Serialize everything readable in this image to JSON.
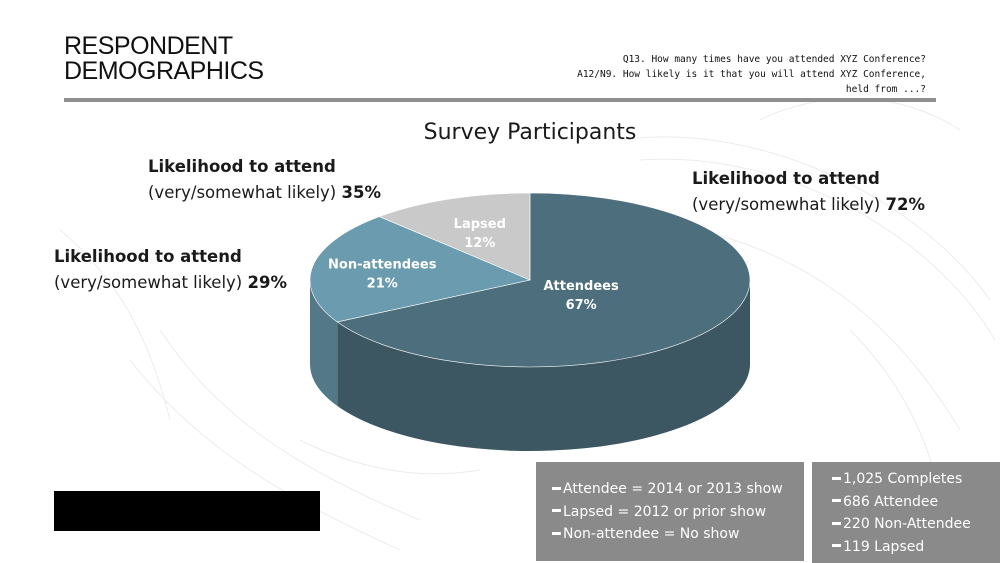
{
  "header": {
    "title_line1": "RESPONDENT",
    "title_line2": "DEMOGRAPHICS",
    "question_line1": "Q13. How many times have you attended XYZ Conference?",
    "question_line2": "A12/N9. How likely is it that you will attend XYZ Conference,",
    "question_line3": "held from ...?"
  },
  "chart_data": {
    "type": "pie",
    "title": "Survey Participants",
    "style": "3d",
    "slices": [
      {
        "label": "Attendees",
        "value": 67,
        "value_label": "67%",
        "color": "#4d6e7d"
      },
      {
        "label": "Non-attendees",
        "value": 21,
        "value_label": "21%",
        "color": "#6a9bae"
      },
      {
        "label": "Lapsed",
        "value": 12,
        "value_label": "12%",
        "color": "#c9c9c9"
      }
    ],
    "annotations": [
      {
        "slice": "Attendees",
        "line1": "Likelihood to attend",
        "line2_prefix": "(very/somewhat likely)",
        "value": "72%"
      },
      {
        "slice": "Lapsed",
        "line1": "Likelihood to attend",
        "line2_prefix": "(very/somewhat likely)",
        "value": "35%"
      },
      {
        "slice": "Non-attendees",
        "line1": "Likelihood to attend",
        "line2_prefix": "(very/somewhat likely)",
        "value": "29%"
      }
    ]
  },
  "definitions": [
    "Attendee = 2014 or 2013 show",
    "Lapsed = 2012 or prior show",
    "Non-attendee = No show"
  ],
  "counts": [
    "1,025 Completes",
    "686 Attendee",
    "220 Non-Attendee",
    "119 Lapsed"
  ],
  "colors": {
    "rule": "#8f8f8f",
    "box": "#8a8a8a"
  }
}
